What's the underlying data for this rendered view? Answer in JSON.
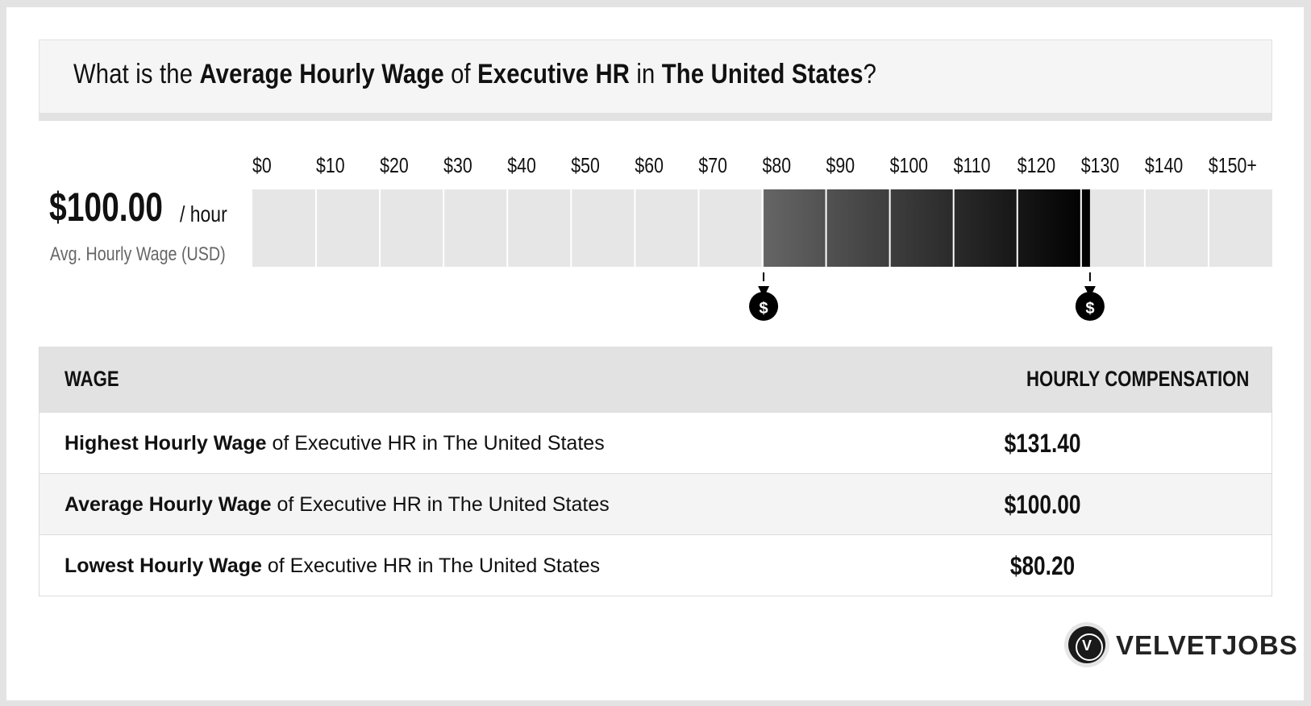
{
  "question": {
    "prefix": "What is the ",
    "metric": "Average Hourly Wage",
    "of": " of ",
    "job": "Executive HR",
    "in": " in ",
    "location": "The United States",
    "suffix": "?"
  },
  "average": {
    "value": "$100.00",
    "unit": "/ hour",
    "label": "Avg. Hourly Wage (USD)"
  },
  "chart_data": {
    "type": "bar",
    "tick_labels": [
      "$0",
      "$10",
      "$20",
      "$30",
      "$40",
      "$50",
      "$60",
      "$70",
      "$80",
      "$90",
      "$100",
      "$110",
      "$120",
      "$130",
      "$140",
      "$150+"
    ],
    "xlim": [
      0,
      160
    ],
    "range_low": 80.2,
    "range_high": 131.4,
    "average": 100.0,
    "markers": [
      {
        "value": 80.2,
        "icon": "money-bag-icon"
      },
      {
        "value": 131.4,
        "icon": "money-bag-icon"
      }
    ],
    "colors": {
      "track": "#e6e6e6",
      "band_light": "#656565",
      "band_dark": "#000000"
    }
  },
  "table": {
    "header_left": "WAGE",
    "header_right": "HOURLY COMPENSATION",
    "rows": [
      {
        "metric": "Highest Hourly Wage",
        "rest": " of Executive HR in The United States",
        "value": "$131.40"
      },
      {
        "metric": "Average Hourly Wage",
        "rest": " of Executive HR in The United States",
        "value": "$100.00"
      },
      {
        "metric": "Lowest Hourly Wage",
        "rest": " of Executive HR in The United States",
        "value": "$80.20"
      }
    ]
  },
  "brand": {
    "name": "VELVETJOBS",
    "logo_letter": "V"
  }
}
